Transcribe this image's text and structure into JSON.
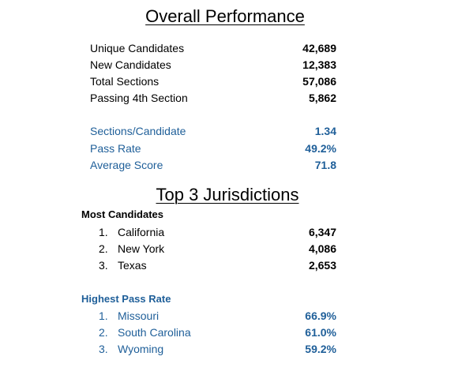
{
  "overall": {
    "title": "Overall Performance",
    "stats": [
      {
        "label": "Unique Candidates",
        "value": "42,689"
      },
      {
        "label": "New Candidates",
        "value": "12,383"
      },
      {
        "label": "Total Sections",
        "value": "57,086"
      },
      {
        "label": "Passing 4th Section",
        "value": "5,862"
      }
    ],
    "metrics": [
      {
        "label": "Sections/Candidate",
        "value": "1.34"
      },
      {
        "label": "Pass Rate",
        "value": "49.2%"
      },
      {
        "label": "Average Score",
        "value": "71.8"
      }
    ]
  },
  "top3": {
    "title": "Top 3 Jurisdictions",
    "most_candidates": {
      "heading": "Most Candidates",
      "items": [
        {
          "rank": "1.",
          "name": "California",
          "value": "6,347"
        },
        {
          "rank": "2.",
          "name": "New York",
          "value": "4,086"
        },
        {
          "rank": "3.",
          "name": "Texas",
          "value": "2,653"
        }
      ]
    },
    "highest_pass_rate": {
      "heading": "Highest Pass Rate",
      "items": [
        {
          "rank": "1.",
          "name": "Missouri",
          "value": "66.9%"
        },
        {
          "rank": "2.",
          "name": "South Carolina",
          "value": "61.0%"
        },
        {
          "rank": "3.",
          "name": "Wyoming",
          "value": "59.2%"
        }
      ]
    }
  },
  "colors": {
    "accent": "#1f5f99",
    "text": "#000000",
    "background": "#ffffff"
  }
}
